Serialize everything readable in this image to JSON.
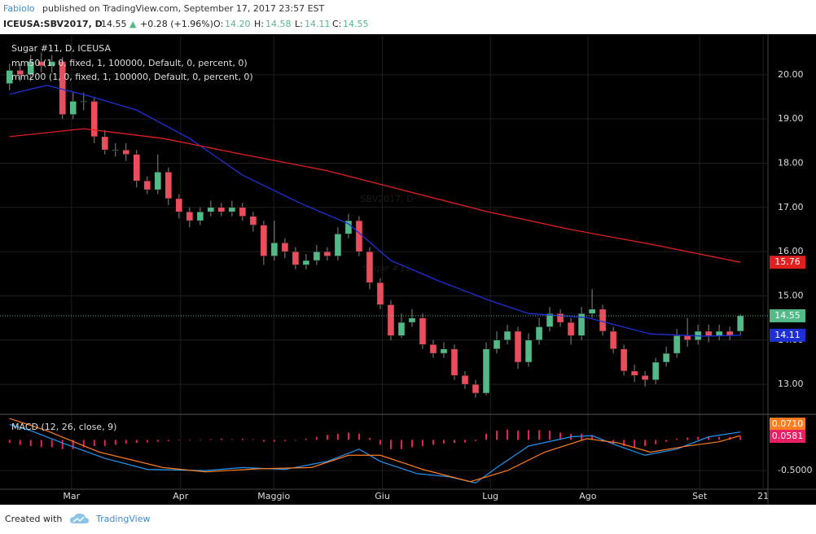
{
  "header": {
    "author": "Fabiolo",
    "published": "published on TradingView.com, September 17, 2017 23:57 EST",
    "symbol": "ICEUSA:SBV2017, D",
    "last": "14.55",
    "arrow": "▲",
    "change": "+0.28 (+1.96%)",
    "o_label": "O:",
    "o": "14.20",
    "h_label": "H:",
    "h": "14.58",
    "l_label": "L:",
    "l": "14.11",
    "c_label": "C:",
    "c": "14.55"
  },
  "chart_data": [
    {
      "type": "candlestick",
      "title": "Sugar #11, D, ICEUSA",
      "watermark": "SBV2017, D",
      "watermark_sub": "Sugar #11",
      "up_color": "#53b987",
      "down_color": "#eb4d5c",
      "last_price_color": "#53b987",
      "x": [
        0,
        2,
        4,
        6,
        8,
        10,
        12,
        14,
        16,
        18,
        20,
        22,
        24,
        26,
        28,
        30,
        32,
        34,
        36,
        38,
        40,
        42,
        44,
        46,
        48,
        50,
        52,
        54,
        56,
        58,
        60,
        62,
        64,
        66,
        68,
        70,
        72,
        74,
        76,
        78,
        80,
        82,
        84,
        86,
        88,
        90,
        92,
        94,
        96,
        98,
        100,
        102,
        104,
        106,
        108,
        110,
        112,
        114,
        116,
        118,
        120,
        122,
        124,
        126,
        128,
        130,
        132,
        134,
        136,
        138
      ],
      "open": [
        19.8,
        20.1,
        20.0,
        20.3,
        20.2,
        20.3,
        19.1,
        19.4,
        19.4,
        18.6,
        18.3,
        18.3,
        18.2,
        17.6,
        17.4,
        17.8,
        17.2,
        16.9,
        16.7,
        16.9,
        17.0,
        16.9,
        17.0,
        16.8,
        16.6,
        15.9,
        16.2,
        16.0,
        15.7,
        15.8,
        16.0,
        15.9,
        16.4,
        16.7,
        16.0,
        15.3,
        14.8,
        14.1,
        14.4,
        14.5,
        13.9,
        13.7,
        13.8,
        13.2,
        13.0,
        12.8,
        13.8,
        14.0,
        14.2,
        13.5,
        14.0,
        14.3,
        14.6,
        14.4,
        14.1,
        14.6,
        14.7,
        14.2,
        13.8,
        13.3,
        13.2,
        13.1,
        13.5,
        13.7,
        14.1,
        14.0,
        14.2,
        14.1,
        14.2,
        14.2
      ],
      "high": [
        20.25,
        20.25,
        20.45,
        20.5,
        20.45,
        20.4,
        19.6,
        19.6,
        19.5,
        18.75,
        18.45,
        18.45,
        18.3,
        17.7,
        18.2,
        17.9,
        17.3,
        17.0,
        17.0,
        17.15,
        17.1,
        17.15,
        17.1,
        16.9,
        16.7,
        16.7,
        16.3,
        16.1,
        15.95,
        16.15,
        16.1,
        16.55,
        16.85,
        16.8,
        16.1,
        15.4,
        14.9,
        14.6,
        14.7,
        14.6,
        14.0,
        13.95,
        13.9,
        13.3,
        13.1,
        13.95,
        14.2,
        14.35,
        14.3,
        14.15,
        14.5,
        14.75,
        14.7,
        14.5,
        14.75,
        15.15,
        14.8,
        14.3,
        13.9,
        13.45,
        13.3,
        13.6,
        13.85,
        14.25,
        14.5,
        14.35,
        14.35,
        14.35,
        14.3,
        14.58
      ],
      "low": [
        19.65,
        19.85,
        19.85,
        20.05,
        20.05,
        19.0,
        19.0,
        19.2,
        18.45,
        18.2,
        18.15,
        18.05,
        17.45,
        17.3,
        17.3,
        17.05,
        16.75,
        16.55,
        16.6,
        16.8,
        16.8,
        16.8,
        16.7,
        16.45,
        15.7,
        15.8,
        15.85,
        15.6,
        15.6,
        15.7,
        15.8,
        15.8,
        16.3,
        15.9,
        15.15,
        14.7,
        14.0,
        14.05,
        14.3,
        13.8,
        13.6,
        13.6,
        13.1,
        12.9,
        12.7,
        12.75,
        13.7,
        13.9,
        13.35,
        13.4,
        13.9,
        14.2,
        14.3,
        13.9,
        14.0,
        14.5,
        14.1,
        13.7,
        13.2,
        13.05,
        12.95,
        13.0,
        13.4,
        13.6,
        13.85,
        13.9,
        13.95,
        14.0,
        14.0,
        14.11
      ],
      "close": [
        20.1,
        20.0,
        20.3,
        20.2,
        20.3,
        19.1,
        19.4,
        19.4,
        18.6,
        18.3,
        18.3,
        18.2,
        17.6,
        17.4,
        17.8,
        17.2,
        16.9,
        16.7,
        16.9,
        17.0,
        16.9,
        17.0,
        16.8,
        16.6,
        15.9,
        16.2,
        16.0,
        15.7,
        15.8,
        16.0,
        15.9,
        16.4,
        16.7,
        16.0,
        15.3,
        14.8,
        14.1,
        14.4,
        14.5,
        13.9,
        13.7,
        13.8,
        13.2,
        13.0,
        12.8,
        13.8,
        14.0,
        14.2,
        13.5,
        14.0,
        14.3,
        14.6,
        14.4,
        14.1,
        14.6,
        14.7,
        14.2,
        13.8,
        13.3,
        13.2,
        13.1,
        13.5,
        13.7,
        14.1,
        14.0,
        14.2,
        14.1,
        14.2,
        14.1,
        14.55
      ],
      "series": [
        {
          "name": "mm50 (1, 0, fixed, 1, 100000, Default, 0, percent, 0)",
          "color": "#1f2fd6",
          "x": [
            0,
            7,
            15,
            24,
            34,
            44,
            55,
            64,
            72,
            81,
            91,
            98,
            109,
            121,
            131,
            138
          ],
          "values": [
            19.56,
            19.76,
            19.52,
            19.2,
            18.56,
            17.73,
            17.09,
            16.63,
            15.8,
            15.34,
            14.88,
            14.6,
            14.51,
            14.14,
            14.09,
            14.11
          ]
        },
        {
          "name": "mm200 (1, 0, fixed, 1, 100000, Default, 0, percent, 0)",
          "color": "#e0201f",
          "x": [
            0,
            14,
            29,
            44,
            60,
            75,
            90,
            106,
            121,
            138
          ],
          "values": [
            18.6,
            18.78,
            18.56,
            18.2,
            17.83,
            17.37,
            16.91,
            16.5,
            16.17,
            15.76
          ]
        }
      ],
      "xlim": [
        -1.8,
        143.2
      ],
      "xticks": [
        {
          "value": 11.7,
          "label": "Mar"
        },
        {
          "value": 32.3,
          "label": "Apr"
        },
        {
          "value": 49.9,
          "label": "Maggio"
        },
        {
          "value": 70.4,
          "label": "Giu"
        },
        {
          "value": 90.8,
          "label": "Lug"
        },
        {
          "value": 109.2,
          "label": "Ago"
        },
        {
          "value": 130.3,
          "label": "Set"
        },
        {
          "value": 142.3,
          "label": "21"
        }
      ],
      "ylim": [
        12.34,
        20.88
      ],
      "yticks": [
        {
          "value": 13,
          "label": "13.00"
        },
        {
          "value": 14,
          "label": "14.00"
        },
        {
          "value": 15,
          "label": "15.00"
        },
        {
          "value": 16,
          "label": "16.00"
        },
        {
          "value": 17,
          "label": "17.00"
        },
        {
          "value": 18,
          "label": "18.00"
        },
        {
          "value": 19,
          "label": "19.00"
        },
        {
          "value": 20,
          "label": "20.00"
        }
      ],
      "grid": true
    },
    {
      "type": "macd",
      "title": "MACD (12, 26, close, 9)",
      "hist_color": "#e91e63",
      "x": [
        0,
        2,
        4,
        6,
        8,
        10,
        12,
        14,
        16,
        18,
        20,
        22,
        24,
        26,
        28,
        30,
        32,
        34,
        36,
        38,
        40,
        42,
        44,
        46,
        48,
        50,
        52,
        54,
        56,
        58,
        60,
        62,
        64,
        66,
        68,
        70,
        72,
        74,
        76,
        78,
        80,
        82,
        84,
        86,
        88,
        90,
        92,
        94,
        96,
        98,
        100,
        102,
        104,
        106,
        108,
        110,
        112,
        114,
        116,
        118,
        120,
        122,
        124,
        126,
        128,
        130,
        132,
        134,
        136,
        138
      ],
      "histogram": [
        -0.05,
        -0.08,
        -0.1,
        -0.12,
        -0.12,
        -0.15,
        -0.15,
        -0.12,
        -0.1,
        -0.1,
        -0.08,
        -0.06,
        -0.05,
        -0.04,
        -0.03,
        -0.02,
        -0.01,
        -0.01,
        -0.01,
        0.01,
        0.02,
        0.01,
        0.02,
        0.01,
        -0.03,
        -0.03,
        -0.02,
        -0.01,
        0.02,
        0.05,
        0.08,
        0.1,
        0.12,
        0.1,
        0.03,
        -0.08,
        -0.15,
        -0.15,
        -0.12,
        -0.1,
        -0.08,
        -0.06,
        -0.05,
        -0.04,
        -0.02,
        0.1,
        0.15,
        0.17,
        0.15,
        0.16,
        0.16,
        0.15,
        0.12,
        0.1,
        0.1,
        0.08,
        -0.03,
        -0.07,
        -0.1,
        -0.12,
        -0.1,
        -0.07,
        -0.03,
        0.02,
        0.04,
        0.05,
        0.05,
        0.05,
        0.05,
        0.0581
      ],
      "series": [
        {
          "color": "#2196f3",
          "x": [
            0,
            4,
            10,
            18,
            26,
            37,
            44,
            52,
            60,
            66,
            70,
            77,
            83,
            88,
            92,
            98,
            106,
            110,
            115,
            120,
            126,
            132,
            138
          ],
          "values": [
            0.25,
            0.15,
            -0.05,
            -0.3,
            -0.48,
            -0.5,
            -0.45,
            -0.48,
            -0.35,
            -0.15,
            -0.35,
            -0.55,
            -0.6,
            -0.7,
            -0.45,
            -0.1,
            0.05,
            0.07,
            -0.1,
            -0.25,
            -0.15,
            0.05,
            0.129
          ]
        },
        {
          "color": "#ff7d1f",
          "x": [
            0,
            7,
            17,
            29,
            37,
            47,
            57,
            64,
            70,
            78,
            87,
            94,
            101,
            109,
            115,
            121,
            128,
            134,
            138
          ],
          "values": [
            0.35,
            0.15,
            -0.2,
            -0.45,
            -0.52,
            -0.47,
            -0.45,
            -0.25,
            -0.25,
            -0.48,
            -0.68,
            -0.5,
            -0.2,
            0.02,
            -0.05,
            -0.2,
            -0.1,
            -0.03,
            0.071
          ]
        }
      ],
      "badges": [
        {
          "value": 0.071,
          "label": "0.0710",
          "color": "#ff7d1f"
        },
        {
          "value": 0.0581,
          "label": "0.0581",
          "color": "#e91e63"
        }
      ],
      "ylim": [
        -0.79,
        0.39
      ],
      "yticks": [
        {
          "value": -0.5,
          "label": "-0.5000"
        }
      ]
    }
  ],
  "footer": {
    "created": "Created with",
    "brand": "TradingView"
  }
}
